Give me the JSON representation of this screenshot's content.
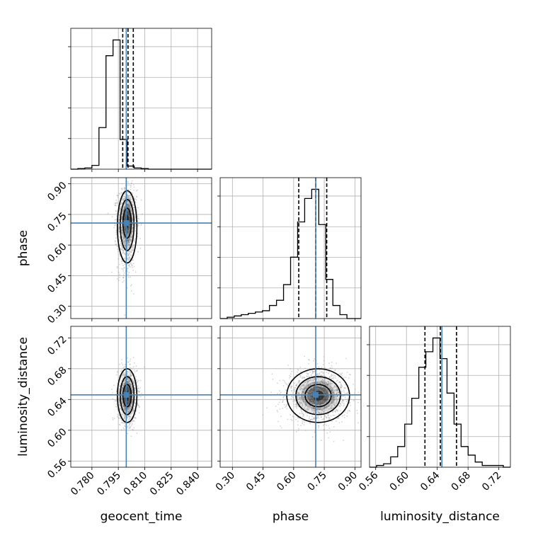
{
  "chart_data": {
    "type": "corner",
    "title": "",
    "parameters": [
      {
        "name": "geocent_time",
        "range": [
          0.768,
          0.848
        ],
        "ticks": [
          "0.780",
          "0.795",
          "0.810",
          "0.825",
          "0.840"
        ],
        "injection": 0.7995,
        "quantiles": [
          0.7975,
          0.8005,
          0.8035
        ]
      },
      {
        "name": "phase",
        "range": [
          0.24,
          0.93
        ],
        "ticks": [
          "0.30",
          "0.45",
          "0.60",
          "0.75",
          "0.90"
        ],
        "injection": 0.708,
        "quantiles": [
          0.625,
          0.708,
          0.762
        ]
      },
      {
        "name": "luminosity_distance",
        "range": [
          0.552,
          0.735
        ],
        "ticks": [
          "0.56",
          "0.60",
          "0.64",
          "0.68",
          "0.72"
        ],
        "injection": 0.646,
        "quantiles": [
          0.624,
          0.644,
          0.665
        ]
      }
    ],
    "histograms": [
      {
        "parameter": "geocent_time",
        "bin_start": 0.768,
        "bin_width": 0.004,
        "counts": [
          0,
          1,
          2,
          6,
          66,
          180,
          205,
          47,
          5,
          2,
          1,
          0,
          0,
          0,
          0,
          0,
          0,
          0,
          0,
          0
        ]
      },
      {
        "parameter": "phase",
        "bin_start": 0.24,
        "bin_width": 0.0345,
        "counts": [
          0,
          1,
          2,
          3,
          4,
          5,
          6,
          10,
          14,
          26,
          47,
          74,
          92,
          99,
          72,
          30,
          10,
          3,
          0,
          0
        ]
      },
      {
        "parameter": "luminosity_distance",
        "bin_start": 0.552,
        "bin_width": 0.00915,
        "counts": [
          0,
          1,
          2,
          6,
          12,
          25,
          40,
          58,
          67,
          75,
          63,
          43,
          25,
          12,
          7,
          3,
          1,
          1,
          1,
          0
        ]
      }
    ],
    "scatter_pairs": [
      {
        "x": "geocent_time",
        "y": "phase",
        "center": [
          0.8,
          0.72
        ],
        "spread": [
          0.0027,
          0.075
        ]
      },
      {
        "x": "geocent_time",
        "y": "luminosity_distance",
        "center": [
          0.8,
          0.645
        ],
        "spread": [
          0.0027,
          0.017
        ]
      },
      {
        "x": "phase",
        "y": "luminosity_distance",
        "center": [
          0.72,
          0.645
        ],
        "spread": [
          0.075,
          0.017
        ]
      }
    ],
    "grid": true,
    "colors": {
      "histogram": "#000000",
      "injection": "#4682b4",
      "quantile": "#000000",
      "samples": "#9e9e9e",
      "density": "#000000",
      "grid": "#b0b0b0"
    }
  }
}
